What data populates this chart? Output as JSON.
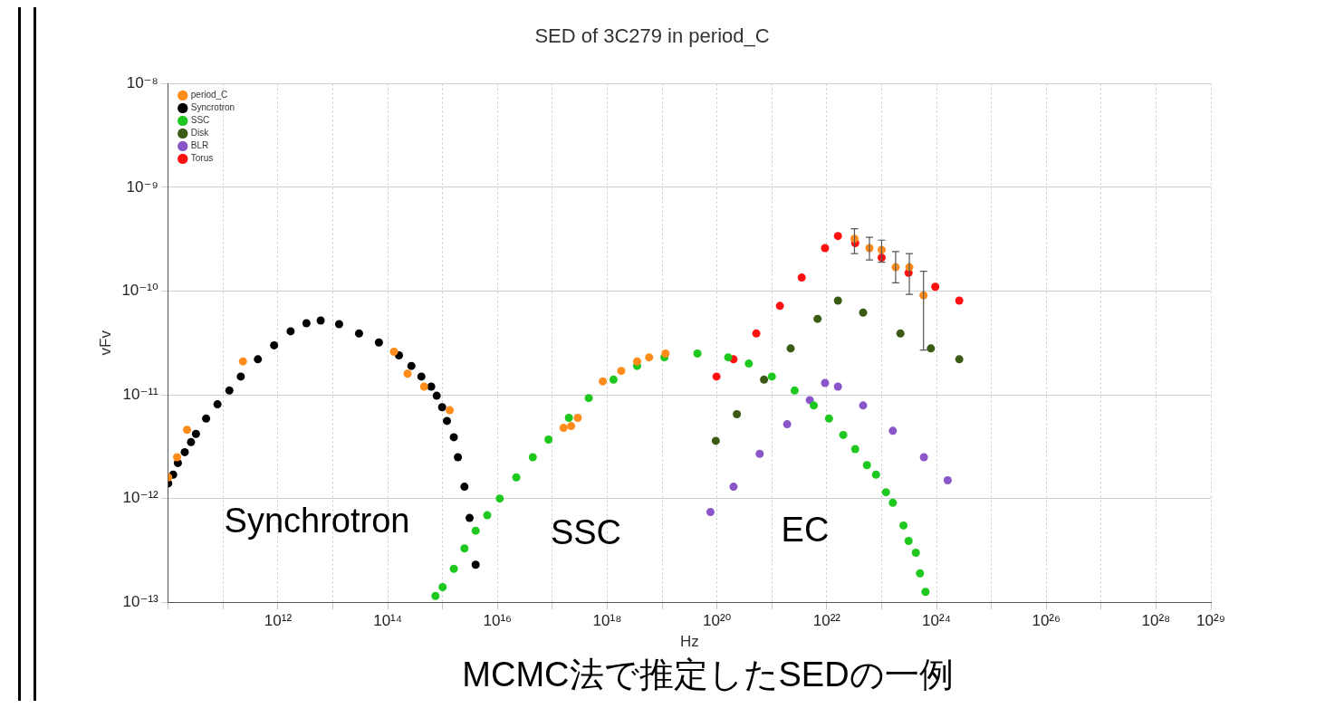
{
  "chart_data": {
    "type": "scatter",
    "title": "SED of 3C279 in period_C",
    "xlabel": "Hz",
    "ylabel": "vFv",
    "log": "xy",
    "grid": true,
    "legend": "top left",
    "marker": "circle",
    "xlim": [
      10000000000.0,
      1e+29
    ],
    "ylim": [
      1e-13,
      1e-08
    ],
    "xticks": [
      {
        "value": 10000000000.0,
        "label": null
      },
      {
        "value": 100000000000.0,
        "label": null
      },
      {
        "value": 1000000000000.0,
        "label": "10¹²"
      },
      {
        "value": 10000000000000.0,
        "label": null
      },
      {
        "value": 100000000000000.0,
        "label": "10¹⁴"
      },
      {
        "value": 1000000000000000.0,
        "label": null
      },
      {
        "value": 1e+16,
        "label": "10¹⁶"
      },
      {
        "value": 1e+17,
        "label": null
      },
      {
        "value": 1e+18,
        "label": "10¹⁸"
      },
      {
        "value": 1e+19,
        "label": null
      },
      {
        "value": 1e+20,
        "label": "10²⁰"
      },
      {
        "value": 1e+21,
        "label": null
      },
      {
        "value": 1e+22,
        "label": "10²²"
      },
      {
        "value": 1e+23,
        "label": null
      },
      {
        "value": 1e+24,
        "label": "10²⁴"
      },
      {
        "value": 1e+25,
        "label": null
      },
      {
        "value": 1e+26,
        "label": "10²⁶"
      },
      {
        "value": 1e+27,
        "label": null
      },
      {
        "value": 1e+28,
        "label": "10²⁸"
      },
      {
        "value": 1e+29,
        "label": "10²⁹"
      }
    ],
    "yticks": [
      {
        "value": 1e-13,
        "label": "10⁻¹³"
      },
      {
        "value": 1e-12,
        "label": "10⁻¹²"
      },
      {
        "value": 1e-11,
        "label": "10⁻¹¹"
      },
      {
        "value": 1e-10,
        "label": "10⁻¹⁰"
      },
      {
        "value": 1e-09,
        "label": "10⁻⁹"
      },
      {
        "value": 1e-08,
        "label": "10⁻⁸"
      }
    ],
    "series": [
      {
        "name": "period_C",
        "color": "#ff8c1a",
        "x": [
          10000000000.0,
          14500000000.0,
          22000000000.0,
          230000000000.0,
          130000000000000.0,
          230000000000000.0,
          460000000000000.0,
          1350000000000000.0,
          1.6e+17,
          2.2e+17,
          2.9e+17,
          8.3e+17,
          1.8e+18,
          3.5e+18,
          5.8e+18,
          1.15e+19,
          3.2e+22,
          6e+22,
          1e+23,
          1.8e+23,
          3.2e+23,
          5.8e+23
        ],
        "values": [
          1.6e-12,
          2.5e-12,
          4.6e-12,
          2.1e-11,
          2.6e-11,
          1.6e-11,
          1.2e-11,
          7.1e-12,
          4.8e-12,
          5e-12,
          6e-12,
          1.35e-11,
          1.7e-11,
          2.1e-11,
          2.3e-11,
          2.5e-11,
          3.2e-10,
          2.6e-10,
          2.5e-10,
          1.7e-10,
          1.7e-10,
          9.1e-11
        ],
        "errors": [
          null,
          null,
          null,
          null,
          null,
          null,
          null,
          null,
          null,
          null,
          null,
          null,
          null,
          null,
          null,
          null,
          [
            2.3e-10,
            4e-10
          ],
          [
            2e-10,
            3.3e-10
          ],
          [
            1.9e-10,
            3.1e-10
          ],
          [
            1.2e-10,
            2.4e-10
          ],
          [
            9.3e-11,
            2.3e-10
          ],
          [
            2.7e-11,
            1.55e-10
          ]
        ]
      },
      {
        "name": "Syncrotron",
        "color": "#000000",
        "x": [
          10000000000.0,
          12300000000.0,
          15000000000.0,
          20000000000.0,
          26000000000.0,
          32000000000.0,
          49000000000.0,
          79000000000.0,
          130000000000.0,
          210000000000.0,
          430000000000.0,
          850000000000.0,
          1700000000000.0,
          3300000000000.0,
          6000000000000.0,
          13000000000000.0,
          30000000000000.0,
          69000000000000.0,
          160000000000000.0,
          270000000000000.0,
          410000000000000.0,
          620000000000000.0,
          780000000000000.0,
          980000000000000.0,
          1200000000000000.0,
          1600000000000000.0,
          1900000000000000.0,
          2500000000000000.0,
          3100000000000000.0,
          4000000000000000.0
        ],
        "values": [
          1.4e-12,
          1.7e-12,
          2.2e-12,
          2.8e-12,
          3.5e-12,
          4.2e-12,
          5.9e-12,
          8.1e-12,
          1.1e-11,
          1.5e-11,
          2.2e-11,
          3e-11,
          4.1e-11,
          4.9e-11,
          5.2e-11,
          4.8e-11,
          3.9e-11,
          3.2e-11,
          2.4e-11,
          1.9e-11,
          1.5e-11,
          1.2e-11,
          9.8e-12,
          7.6e-12,
          5.6e-12,
          3.9e-12,
          2.5e-12,
          1.3e-12,
          6.5e-13,
          2.3e-13
        ]
      },
      {
        "name": "SSC",
        "color": "#1ec81e",
        "x": [
          740000000000000.0,
          1000000000000000.0,
          1600000000000000.0,
          2500000000000000.0,
          4000000000000000.0,
          6500000000000000.0,
          1.1e+16,
          2.2e+16,
          4.4e+16,
          8.5e+16,
          2e+17,
          4.6e+17,
          1.3e+18,
          3.5e+18,
          1.1e+19,
          4.4e+19,
          1.6e+20,
          3.8e+20,
          1e+21,
          2.6e+21,
          5.8e+21,
          1.1e+22,
          2e+22,
          3.3e+22,
          5.4e+22,
          7.9e+22,
          1.2e+23,
          1.6e+23,
          2.5e+23,
          3.1e+23,
          4.2e+23,
          5e+23,
          6.3e+23
        ],
        "values": [
          1.15e-13,
          1.4e-13,
          2.1e-13,
          3.3e-13,
          4.9e-13,
          6.9e-13,
          1e-12,
          1.6e-12,
          2.5e-12,
          3.7e-12,
          6e-12,
          9.3e-12,
          1.4e-11,
          1.9e-11,
          2.3e-11,
          2.5e-11,
          2.3e-11,
          2e-11,
          1.5e-11,
          1.1e-11,
          7.9e-12,
          5.9e-12,
          4.1e-12,
          3e-12,
          2.1e-12,
          1.7e-12,
          1.15e-12,
          9.1e-13,
          5.5e-13,
          3.9e-13,
          3e-13,
          1.9e-13,
          1.26e-13
        ]
      },
      {
        "name": "Disk",
        "color": "#3b5a14",
        "x": [
          9.5e+19,
          2.3e+20,
          7.2e+20,
          2.2e+21,
          6.8e+21,
          1.6e+22,
          4.6e+22,
          2.2e+23,
          7.9e+23,
          2.6e+24
        ],
        "values": [
          3.6e-12,
          6.5e-12,
          1.4e-11,
          2.8e-11,
          5.4e-11,
          8.1e-11,
          6.2e-11,
          3.9e-11,
          2.8e-11,
          2.2e-11
        ]
      },
      {
        "name": "BLR",
        "color": "#8a55c8",
        "x": [
          7.6e+19,
          2e+20,
          6e+20,
          1.9e+21,
          4.9e+21,
          9.3e+21,
          1.6e+22,
          4.6e+22,
          1.6e+23,
          5.9e+23,
          1.6e+24
        ],
        "values": [
          7.4e-13,
          1.3e-12,
          2.7e-12,
          5.2e-12,
          8.9e-12,
          1.3e-11,
          1.2e-11,
          7.9e-12,
          4.5e-12,
          2.5e-12,
          1.5e-12
        ]
      },
      {
        "name": "Torus",
        "color": "#ff1010",
        "x": [
          9.8e+19,
          2e+20,
          5.2e+20,
          1.4e+21,
          3.5e+21,
          9.3e+21,
          1.6e+22,
          3.3e+22,
          1e+23,
          3.1e+23,
          9.5e+23,
          2.6e+24
        ],
        "values": [
          1.5e-11,
          2.2e-11,
          3.9e-11,
          7.2e-11,
          1.35e-10,
          2.6e-10,
          3.4e-10,
          2.9e-10,
          2.1e-10,
          1.5e-10,
          1.1e-10,
          8.1e-11
        ]
      }
    ],
    "annotations": [
      "Synchrotron",
      "SSC",
      "EC",
      "MCMC法で推定したSEDの一例"
    ]
  }
}
